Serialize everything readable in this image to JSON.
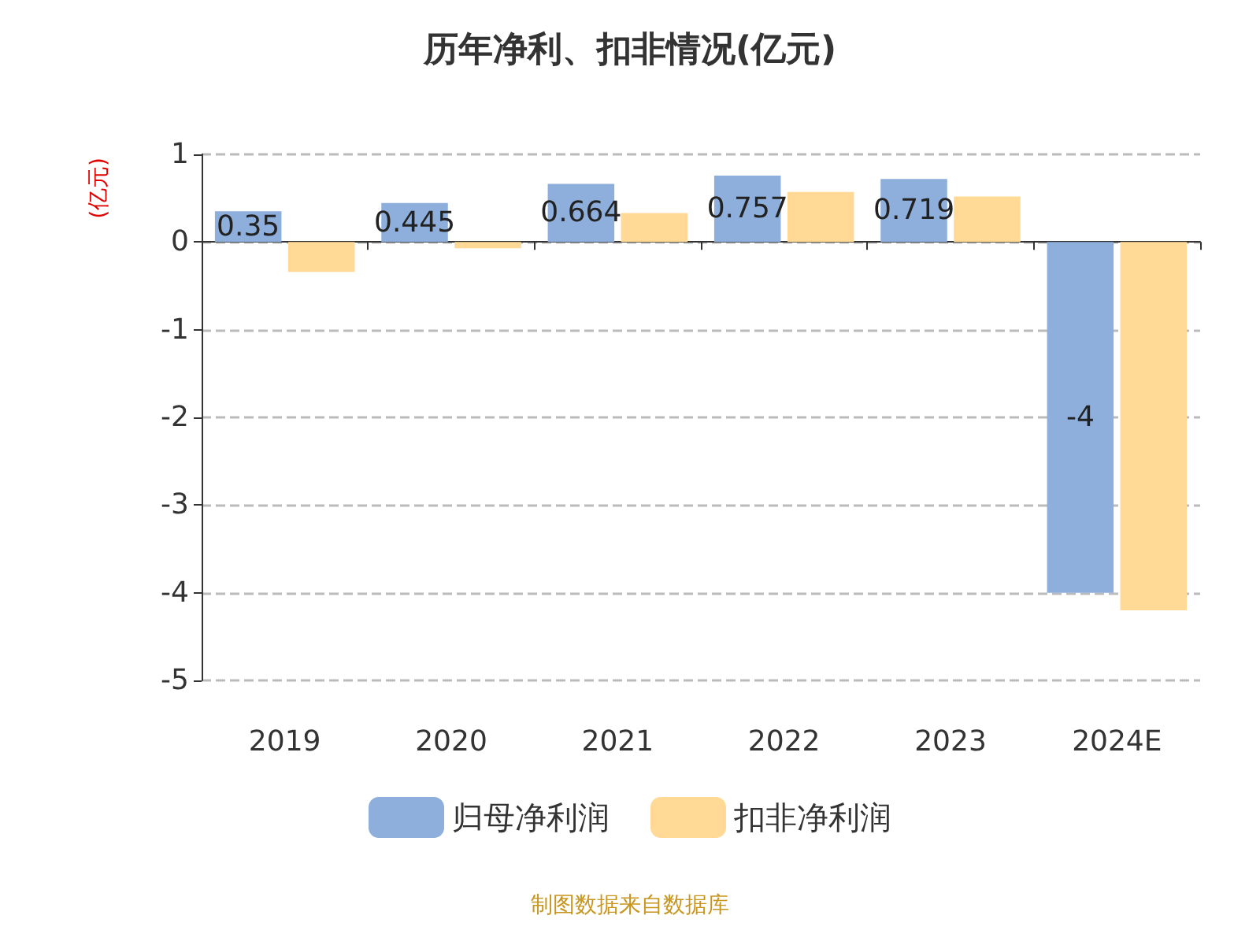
{
  "chart_data": {
    "type": "bar",
    "title": "历年净利、扣非情况(亿元)",
    "ylabel": "(亿元)",
    "categories": [
      "2019",
      "2020",
      "2021",
      "2022",
      "2023",
      "2024E"
    ],
    "series": [
      {
        "name": "归母净利润",
        "color": "#8eaedb",
        "values": [
          0.35,
          0.445,
          0.664,
          0.757,
          0.719,
          -4
        ],
        "value_labels": [
          "0.35",
          "0.445",
          "0.664",
          "0.757",
          "0.719",
          "-4"
        ]
      },
      {
        "name": "扣非净利润",
        "color": "#ffd995",
        "values": [
          -0.34,
          -0.07,
          0.33,
          0.57,
          0.52,
          -4.2
        ]
      }
    ],
    "ylim": [
      -5,
      1
    ],
    "yticks": [
      -5,
      -4,
      -3,
      -2,
      -1,
      0,
      1
    ],
    "grid": "y",
    "legend": "bottom",
    "annotations": [
      "制图数据来自数据库"
    ]
  }
}
